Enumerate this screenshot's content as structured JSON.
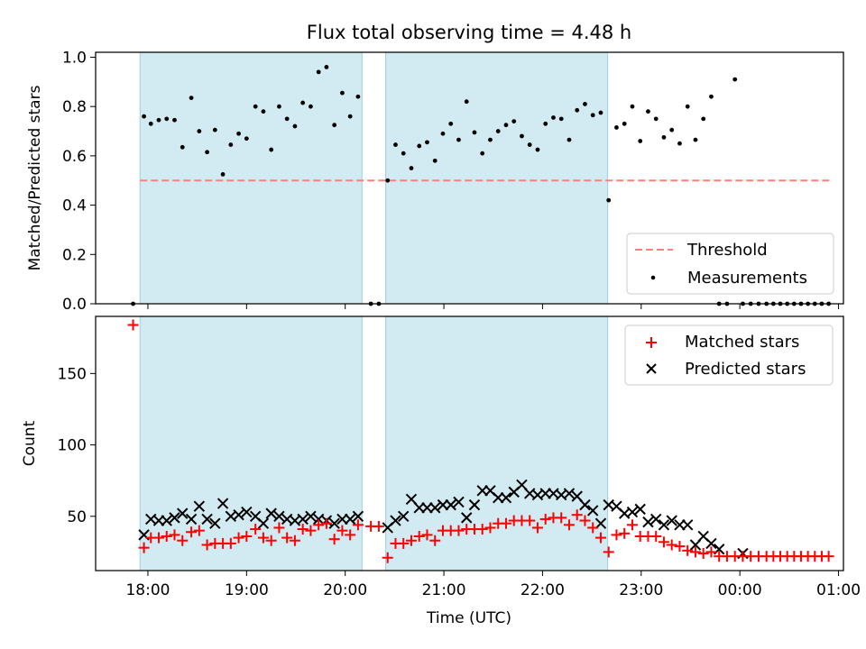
{
  "chart_data": [
    {
      "type": "scatter",
      "title": "Flux total observing time = 4.48 h",
      "xlabel": "",
      "ylabel": "Matched/Predicted stars",
      "xlim": [
        17.47,
        25.05
      ],
      "ylim": [
        0,
        1.02
      ],
      "x_ticks": [
        18,
        19,
        20,
        21,
        22,
        23,
        24,
        25
      ],
      "y_ticks": [
        0.0,
        0.2,
        0.4,
        0.6,
        0.8,
        1.0
      ],
      "y_tick_labels": [
        "0.0",
        "0.2",
        "0.4",
        "0.6",
        "0.8",
        "1.0"
      ],
      "shaded_intervals": [
        [
          17.92,
          20.17
        ],
        [
          20.41,
          22.66
        ]
      ],
      "threshold": {
        "name": "Threshold",
        "value": 0.5,
        "x_range": [
          17.92,
          24.92
        ],
        "color": "#ff7f7f"
      },
      "legend_position": "lower right",
      "series": [
        {
          "name": "Measurements",
          "color": "#000000",
          "x": [
            17.85,
            17.96,
            18.03,
            18.11,
            18.19,
            18.27,
            18.35,
            18.44,
            18.52,
            18.6,
            18.68,
            18.76,
            18.84,
            18.92,
            19.0,
            19.09,
            19.17,
            19.25,
            19.33,
            19.41,
            19.49,
            19.57,
            19.65,
            19.73,
            19.81,
            19.89,
            19.97,
            20.05,
            20.13,
            20.26,
            20.34,
            20.43,
            20.51,
            20.59,
            20.67,
            20.75,
            20.83,
            20.91,
            20.99,
            21.07,
            21.15,
            21.23,
            21.31,
            21.39,
            21.47,
            21.55,
            21.63,
            21.71,
            21.79,
            21.87,
            21.95,
            22.03,
            22.11,
            22.19,
            22.27,
            22.35,
            22.43,
            22.51,
            22.59,
            22.67,
            22.75,
            22.83,
            22.91,
            22.99,
            23.07,
            23.15,
            23.23,
            23.31,
            23.39,
            23.47,
            23.55,
            23.63,
            23.71,
            23.79,
            23.87,
            23.95,
            24.03,
            24.11,
            24.19,
            24.27,
            24.34,
            24.41,
            24.48,
            24.55,
            24.62,
            24.69,
            24.76,
            24.83,
            24.9
          ],
          "y": [
            0.0,
            0.76,
            0.73,
            0.745,
            0.75,
            0.745,
            0.635,
            0.835,
            0.7,
            0.615,
            0.705,
            0.525,
            0.645,
            0.69,
            0.67,
            0.8,
            0.78,
            0.625,
            0.8,
            0.75,
            0.72,
            0.815,
            0.8,
            0.94,
            0.96,
            0.725,
            0.855,
            0.76,
            0.84,
            0.0,
            0.0,
            0.5,
            0.645,
            0.61,
            0.55,
            0.64,
            0.655,
            0.58,
            0.69,
            0.73,
            0.665,
            0.82,
            0.695,
            0.61,
            0.665,
            0.7,
            0.725,
            0.74,
            0.68,
            0.645,
            0.625,
            0.73,
            0.755,
            0.75,
            0.665,
            0.785,
            0.81,
            0.765,
            0.775,
            0.42,
            0.715,
            0.73,
            0.8,
            0.66,
            0.78,
            0.75,
            0.675,
            0.705,
            0.65,
            0.8,
            0.665,
            0.75,
            0.84,
            0.0,
            0.0,
            0.91,
            0.0,
            0.0,
            0.0,
            0.0,
            0.0,
            0.0,
            0.0,
            0.0,
            0.0,
            0.0,
            0.0,
            0.0,
            0.0
          ]
        }
      ]
    },
    {
      "type": "scatter",
      "title": "",
      "xlabel": "Time (UTC)",
      "ylabel": "Count",
      "xlim": [
        17.47,
        25.05
      ],
      "ylim": [
        12,
        190
      ],
      "x_ticks": [
        18,
        19,
        20,
        21,
        22,
        23,
        24,
        25
      ],
      "x_tick_labels": [
        "18:00",
        "19:00",
        "20:00",
        "21:00",
        "22:00",
        "23:00",
        "00:00",
        "01:00"
      ],
      "y_ticks": [
        50,
        100,
        150
      ],
      "y_tick_labels": [
        "50",
        "100",
        "150"
      ],
      "shaded_intervals": [
        [
          17.92,
          20.17
        ],
        [
          20.41,
          22.66
        ]
      ],
      "legend_position": "upper right",
      "series": [
        {
          "name": "Matched stars",
          "marker": "plus",
          "color": "#ff0000",
          "x": [
            17.85,
            17.96,
            18.03,
            18.11,
            18.19,
            18.27,
            18.35,
            18.44,
            18.52,
            18.6,
            18.68,
            18.76,
            18.84,
            18.92,
            19.0,
            19.09,
            19.17,
            19.25,
            19.33,
            19.41,
            19.49,
            19.57,
            19.65,
            19.73,
            19.81,
            19.89,
            19.97,
            20.05,
            20.13,
            20.26,
            20.34,
            20.43,
            20.51,
            20.59,
            20.67,
            20.75,
            20.83,
            20.91,
            20.99,
            21.07,
            21.15,
            21.23,
            21.31,
            21.39,
            21.47,
            21.55,
            21.63,
            21.71,
            21.79,
            21.87,
            21.95,
            22.03,
            22.11,
            22.19,
            22.27,
            22.35,
            22.43,
            22.51,
            22.59,
            22.67,
            22.75,
            22.83,
            22.91,
            22.99,
            23.07,
            23.15,
            23.23,
            23.31,
            23.39,
            23.47,
            23.55,
            23.63,
            23.71,
            23.79,
            23.87,
            23.95,
            24.03,
            24.11,
            24.19,
            24.27,
            24.34,
            24.41,
            24.48,
            24.55,
            24.62,
            24.69,
            24.76,
            24.83,
            24.9
          ],
          "y": [
            184,
            28,
            35,
            35,
            36,
            37,
            33,
            39,
            40,
            30,
            31,
            31,
            31,
            35,
            36,
            41,
            35,
            33,
            42,
            35,
            33,
            41,
            40,
            44,
            45,
            34,
            40,
            37,
            44,
            43,
            43,
            21,
            31,
            31,
            33,
            36,
            37,
            33,
            40,
            40,
            40,
            41,
            41,
            41,
            42,
            45,
            45,
            47,
            47,
            47,
            42,
            48,
            49,
            49,
            44,
            51,
            47,
            42,
            35,
            25,
            37,
            38,
            44,
            36,
            36,
            36,
            32,
            30,
            29,
            26,
            25,
            24,
            25,
            22,
            22,
            22,
            22,
            22,
            22,
            22,
            22,
            22,
            22,
            22,
            22,
            22,
            22,
            22,
            22
          ]
        },
        {
          "name": "Predicted stars",
          "marker": "x",
          "color": "#000000",
          "x": [
            17.96,
            18.03,
            18.11,
            18.19,
            18.27,
            18.35,
            18.44,
            18.52,
            18.6,
            18.68,
            18.76,
            18.84,
            18.92,
            19.0,
            19.09,
            19.17,
            19.25,
            19.33,
            19.41,
            19.49,
            19.57,
            19.65,
            19.73,
            19.81,
            19.89,
            19.97,
            20.05,
            20.13,
            20.43,
            20.51,
            20.59,
            20.67,
            20.75,
            20.83,
            20.91,
            20.99,
            21.07,
            21.15,
            21.23,
            21.31,
            21.39,
            21.47,
            21.55,
            21.63,
            21.71,
            21.79,
            21.87,
            21.95,
            22.03,
            22.11,
            22.19,
            22.27,
            22.35,
            22.43,
            22.51,
            22.59,
            22.67,
            22.75,
            22.83,
            22.91,
            22.99,
            23.07,
            23.15,
            23.23,
            23.31,
            23.39,
            23.47,
            23.55,
            23.63,
            23.71,
            23.79,
            24.03
          ],
          "y": [
            37,
            48,
            47,
            47,
            49,
            52,
            48,
            57,
            48,
            45,
            59,
            50,
            51,
            53,
            50,
            45,
            52,
            50,
            48,
            47,
            48,
            50,
            48,
            47,
            45,
            48,
            48,
            50,
            42,
            47,
            50,
            62,
            56,
            56,
            56,
            58,
            58,
            60,
            49,
            58,
            68,
            68,
            63,
            63,
            67,
            72,
            66,
            65,
            66,
            66,
            65,
            66,
            64,
            58,
            54,
            45,
            58,
            57,
            52,
            53,
            55,
            46,
            48,
            44,
            47,
            44,
            44,
            30,
            36,
            31,
            27,
            24
          ]
        }
      ]
    }
  ]
}
